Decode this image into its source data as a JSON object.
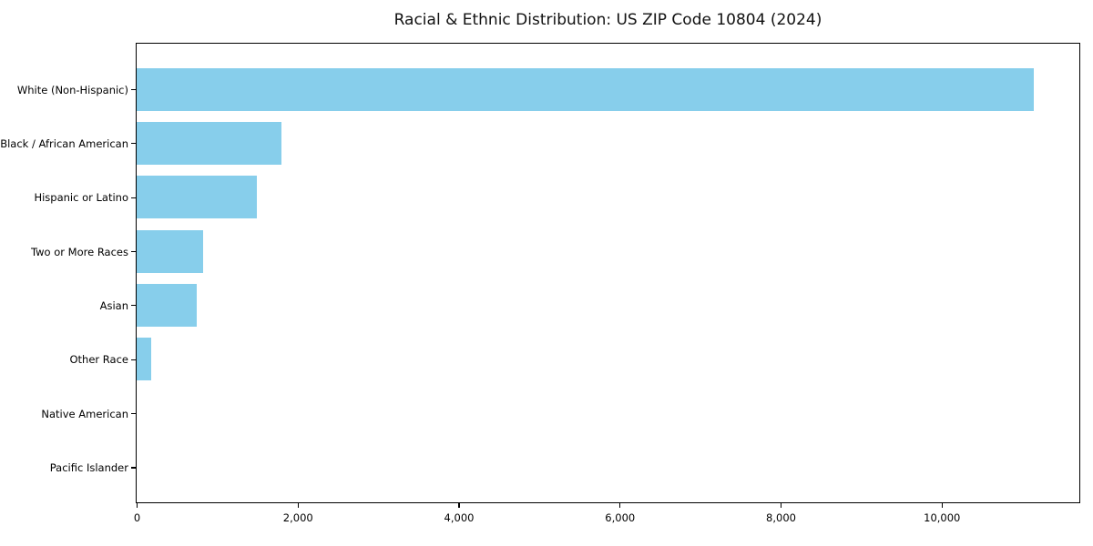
{
  "chart_data": {
    "type": "bar",
    "orientation": "horizontal",
    "title": "Racial & Ethnic Distribution: US ZIP Code 10804 (2024)",
    "categories": [
      "White (Non-Hispanic)",
      "Black / African American",
      "Hispanic or Latino",
      "Two or More Races",
      "Asian",
      "Other Race",
      "Native American",
      "Pacific Islander"
    ],
    "values": [
      11140,
      1800,
      1490,
      820,
      750,
      180,
      0,
      0
    ],
    "xlabel": "",
    "ylabel": "",
    "xlim": [
      0,
      11700
    ],
    "x_ticks": [
      0,
      2000,
      4000,
      6000,
      8000,
      10000
    ],
    "x_tick_labels": [
      "0",
      "2,000",
      "4,000",
      "6,000",
      "8,000",
      "10,000"
    ],
    "bar_color": "#87CEEB",
    "axis_color": "#000000",
    "background_color": "#FFFFFF",
    "grid": false,
    "legend": "none"
  }
}
